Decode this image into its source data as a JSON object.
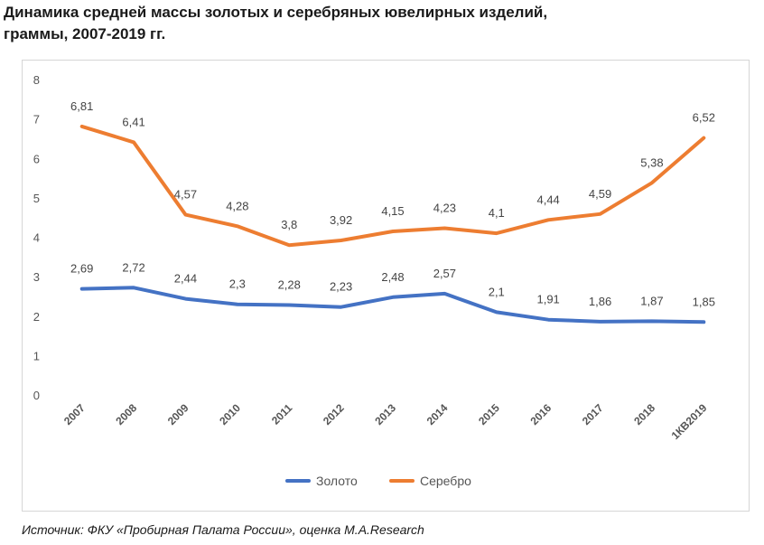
{
  "title_line1": "Динамика средней массы золотых и серебряных ювелирных изделий,",
  "title_line2": "граммы, 2007-2019 гг.",
  "source": "Источник: ФКУ «Пробирная Палата России», оценка М.А.Research",
  "chart_data": {
    "type": "line",
    "categories": [
      "2007",
      "2008",
      "2009",
      "2010",
      "2011",
      "2012",
      "2013",
      "2014",
      "2015",
      "2016",
      "2017",
      "2018",
      "1КВ2019"
    ],
    "series": [
      {
        "name": "Золото",
        "color": "#4472C4",
        "values": [
          2.69,
          2.72,
          2.44,
          2.3,
          2.28,
          2.23,
          2.48,
          2.57,
          2.1,
          1.91,
          1.86,
          1.87,
          1.85
        ],
        "labels": [
          "2,69",
          "2,72",
          "2,44",
          "2,3",
          "2,28",
          "2,23",
          "2,48",
          "2,57",
          "2,1",
          "1,91",
          "1,86",
          "1,87",
          "1,85"
        ]
      },
      {
        "name": "Серебро",
        "color": "#ED7D31",
        "values": [
          6.81,
          6.41,
          4.57,
          4.28,
          3.8,
          3.92,
          4.15,
          4.23,
          4.1,
          4.44,
          4.59,
          5.38,
          6.52
        ],
        "labels": [
          "6,81",
          "6,41",
          "4,57",
          "4,28",
          "3,8",
          "3,92",
          "4,15",
          "4,23",
          "4,1",
          "4,44",
          "4,59",
          "5,38",
          "6,52"
        ]
      }
    ],
    "ylim": [
      0,
      8
    ],
    "yticks": [
      0,
      1,
      2,
      3,
      4,
      5,
      6,
      7,
      8
    ],
    "grid": false,
    "legend_position": "bottom"
  }
}
